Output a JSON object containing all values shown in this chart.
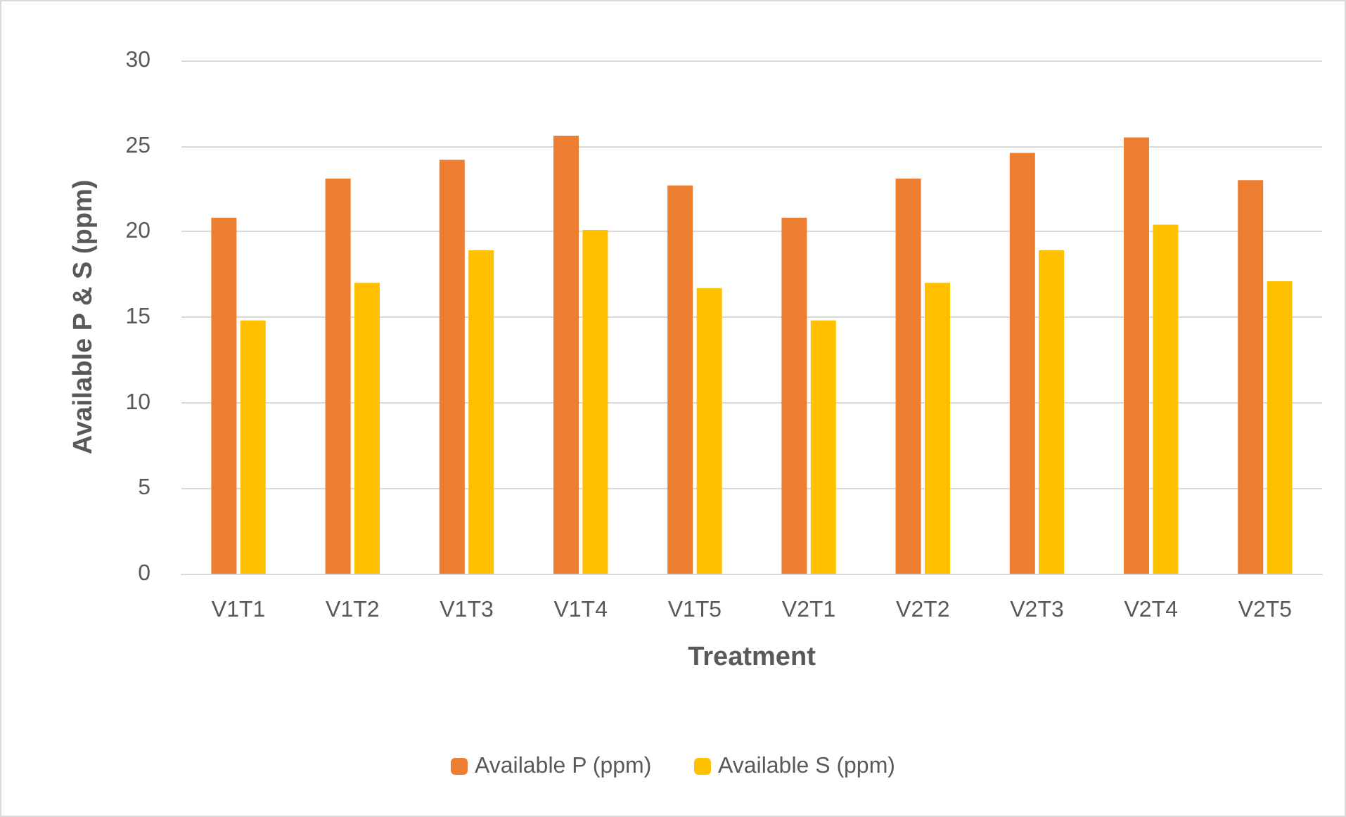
{
  "chart_data": {
    "type": "bar",
    "xlabel": "Treatment",
    "ylabel": "Available P & S (ppm)",
    "categories": [
      "V1T1",
      "V1T2",
      "V1T3",
      "V1T4",
      "V1T5",
      "V2T1",
      "V2T2",
      "V2T3",
      "V2T4",
      "V2T5"
    ],
    "series": [
      {
        "name": "Available P (ppm)",
        "color": "#ed7d31",
        "values": [
          20.8,
          23.1,
          24.2,
          25.6,
          22.7,
          20.8,
          23.1,
          24.6,
          25.5,
          23.0
        ]
      },
      {
        "name": "Available S (ppm)",
        "color": "#ffc000",
        "values": [
          14.8,
          17.0,
          18.9,
          20.1,
          16.7,
          14.8,
          17.0,
          18.9,
          20.4,
          17.1
        ]
      }
    ],
    "ylim": [
      0,
      30
    ],
    "yticks": [
      0,
      5,
      10,
      15,
      20,
      25,
      30
    ],
    "grid": "y",
    "legend": "bottom"
  }
}
